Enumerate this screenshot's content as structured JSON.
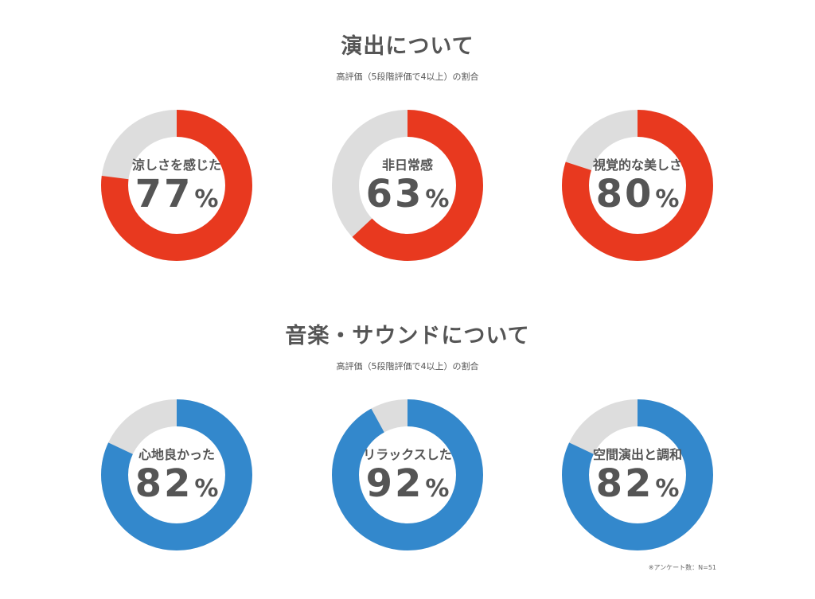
{
  "sections": [
    {
      "title": "演出について",
      "subtitle": "高評価（5段階評価で4以上）の割合"
    },
    {
      "title": "音楽・サウンドについて",
      "subtitle": "高評価（5段階評価で4以上）の割合"
    }
  ],
  "chart_data": [
    {
      "type": "pie",
      "group": "演出について",
      "slices": [
        {
          "label": "涼しさを感じた",
          "value": 77,
          "percent_sign": "%"
        },
        {
          "label": "非日常感",
          "value": 63,
          "percent_sign": "%"
        },
        {
          "label": "視覚的な美しさ",
          "value": 80,
          "percent_sign": "%"
        }
      ]
    },
    {
      "type": "pie",
      "group": "音楽・サウンドについて",
      "slices": [
        {
          "label": "心地良かった",
          "value": 82,
          "percent_sign": "%"
        },
        {
          "label": "リラックスした",
          "value": 92,
          "percent_sign": "%"
        },
        {
          "label": "空間演出と調和",
          "value": 82,
          "percent_sign": "%"
        }
      ]
    }
  ],
  "colors": {
    "section_1_accent": "#e8391f",
    "section_2_accent": "#3388cc",
    "remainder": "#dddddd",
    "text": "#555555"
  },
  "footnote": "※アンケート数：N=51"
}
